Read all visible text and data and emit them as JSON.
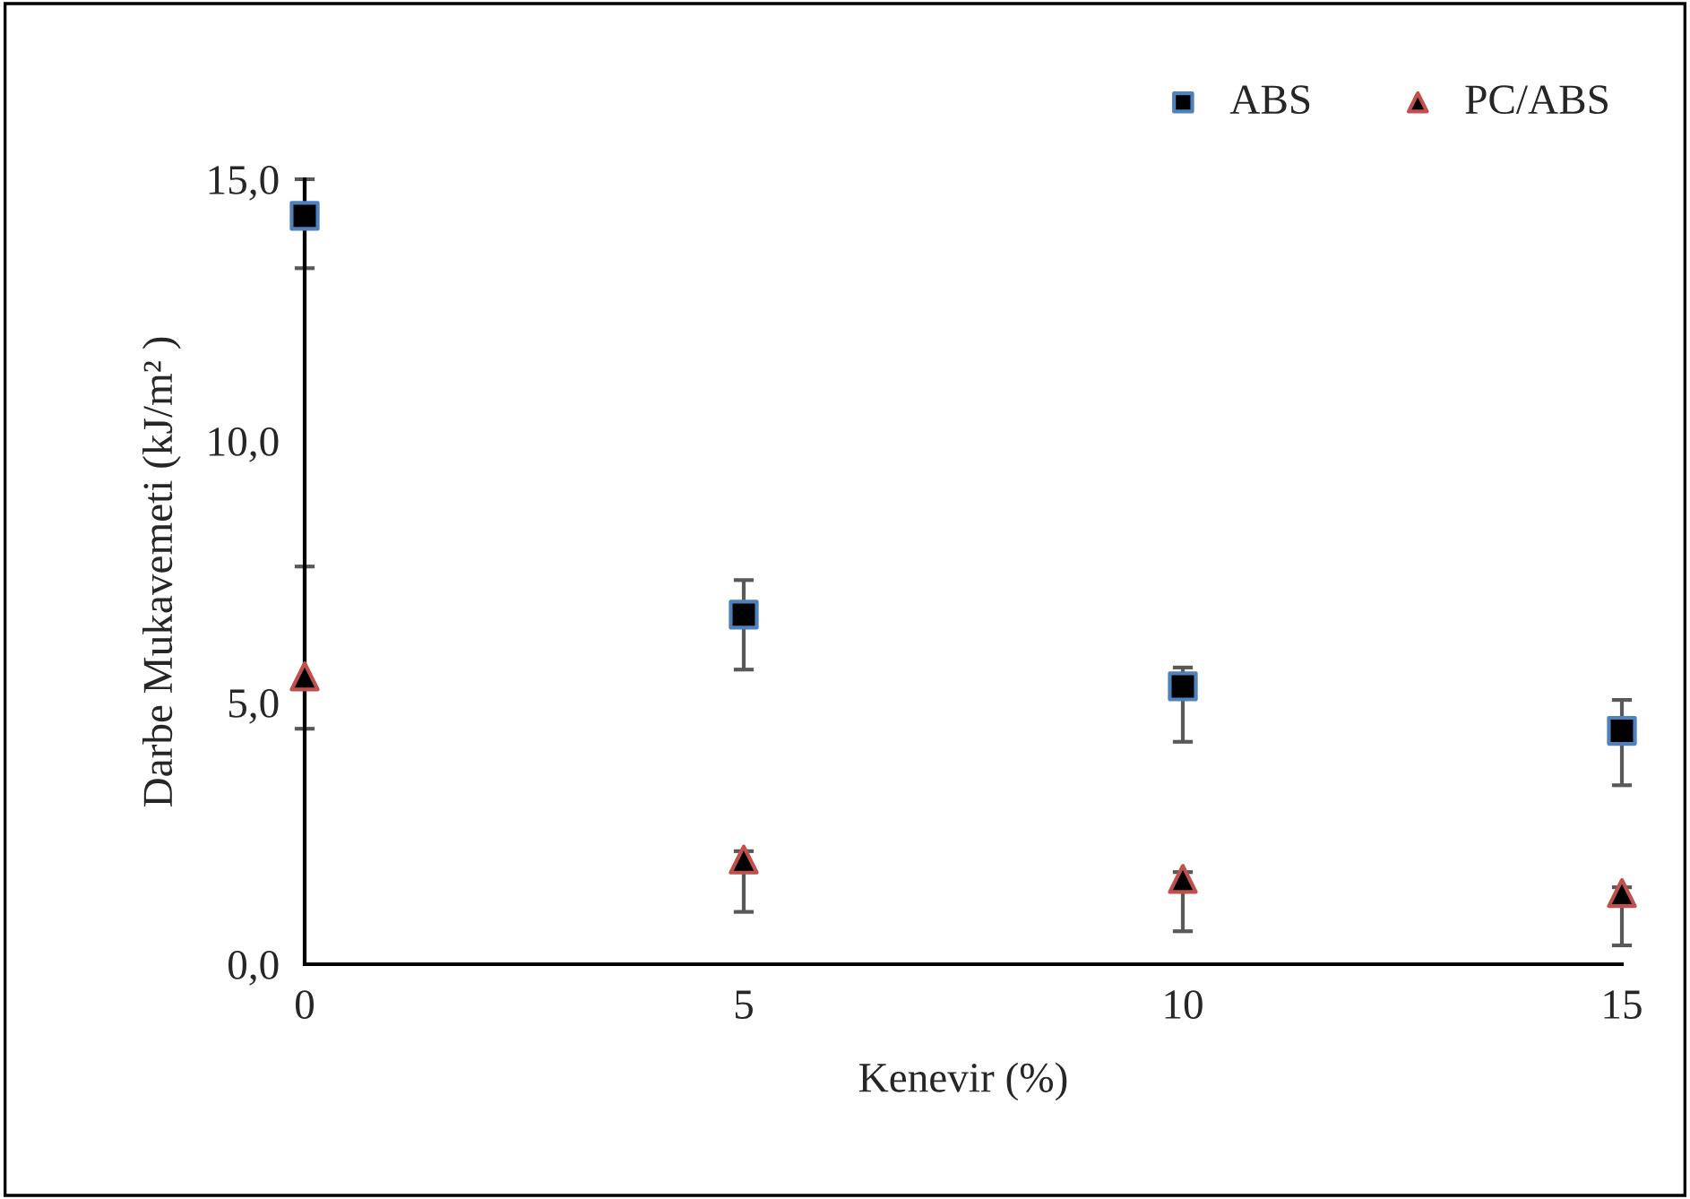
{
  "chart_data": {
    "type": "scatter",
    "xlabel": "Kenevir (%)",
    "ylabel": "Darbe Mukavemeti (kJ/m² )",
    "x": [
      0,
      5,
      10,
      15
    ],
    "series": [
      {
        "name": "ABS",
        "color": "#4f81bd",
        "marker": "square",
        "values": [
          14.3,
          6.68,
          5.31,
          4.46
        ],
        "errors": [
          [
            13.3,
            15.0
          ],
          [
            5.63,
            7.34
          ],
          [
            4.25,
            5.67
          ],
          [
            3.42,
            5.05
          ]
        ]
      },
      {
        "name": "PC/ABS",
        "color": "#c0504d",
        "marker": "triangle",
        "values": [
          5.5,
          2.0,
          1.63,
          1.36
        ],
        "errors": [
          [
            4.5,
            7.6
          ],
          [
            1.0,
            2.16
          ],
          [
            0.63,
            1.76
          ],
          [
            0.36,
            1.47
          ]
        ]
      }
    ],
    "xlim": [
      0,
      15
    ],
    "xticks": [
      0,
      5,
      10,
      15
    ],
    "ylim": [
      0,
      15
    ],
    "yticks": [
      {
        "value": 0,
        "label": "0,0"
      },
      {
        "value": 5,
        "label": "5,0"
      },
      {
        "value": 10,
        "label": "10,0"
      },
      {
        "value": 15,
        "label": "15,0"
      }
    ],
    "grid": false,
    "legend": "top right"
  }
}
